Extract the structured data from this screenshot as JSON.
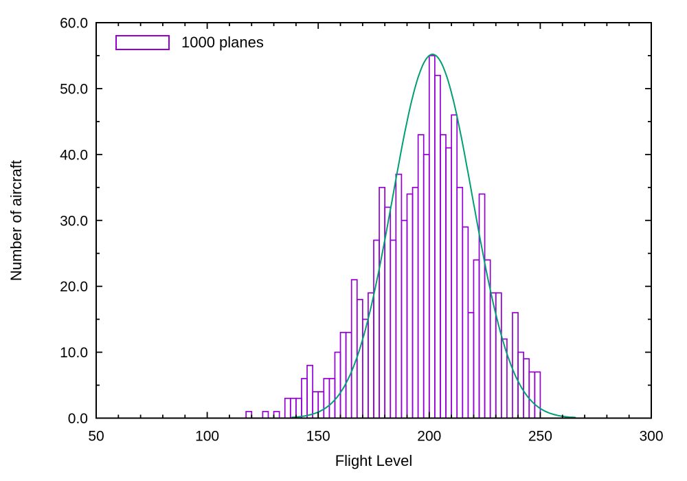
{
  "chart_data": {
    "type": "bar",
    "subtype": "histogram-with-gaussian-fit",
    "title": "",
    "xlabel": "Flight Level",
    "ylabel": "Number of aircraft",
    "legend": {
      "label": "1000 planes",
      "position": "top-left-inside",
      "swatch_color": "#9400D3"
    },
    "xlim": [
      50,
      300
    ],
    "ylim": [
      0,
      60
    ],
    "x_major_ticks": [
      50,
      100,
      150,
      200,
      250,
      300
    ],
    "x_tick_labels": [
      "50",
      "100",
      "150",
      "200",
      "250",
      "300"
    ],
    "x_minor_step": 10,
    "y_major_ticks": [
      0,
      10,
      20,
      30,
      40,
      50,
      60
    ],
    "y_tick_labels": [
      "0.0",
      "10.0",
      "20.0",
      "30.0",
      "40.0",
      "50.0",
      "60.0"
    ],
    "y_minor_step": 5,
    "grid": false,
    "tics_mirrored": true,
    "bar_color": "#9400D3",
    "bar_fill": "none",
    "curve_color": "#009E73",
    "bin_width": 2.5,
    "bin_starts": [
      117.5,
      125,
      130,
      135,
      137.5,
      140,
      142.5,
      145,
      147.5,
      150,
      152.5,
      155,
      157.5,
      160,
      162.5,
      165,
      167.5,
      170,
      172.5,
      175,
      177.5,
      180,
      182.5,
      185,
      187.5,
      190,
      192.5,
      195,
      197.5,
      200,
      202.5,
      205,
      207.5,
      210,
      212.5,
      215,
      217.5,
      220,
      222.5,
      225,
      227.5,
      230,
      232.5,
      237.5,
      240,
      242.5,
      245,
      247.5
    ],
    "counts": [
      1,
      1,
      1,
      3,
      3,
      3,
      6,
      8,
      4,
      4,
      6,
      6,
      10,
      13,
      13,
      21,
      18,
      15,
      19,
      27,
      35,
      32,
      27,
      37,
      30,
      34,
      35,
      43,
      40,
      55,
      52,
      43,
      41,
      46,
      35,
      29,
      16,
      24,
      34,
      24,
      19,
      19,
      12,
      16,
      10,
      9,
      7,
      7
    ],
    "curve": {
      "model": "gaussian",
      "amplitude": 55.2,
      "mean": 201.5,
      "sigma": 18,
      "draw_range": [
        138,
        266
      ]
    }
  }
}
